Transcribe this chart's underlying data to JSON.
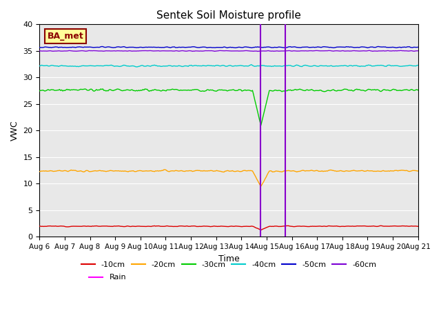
{
  "title": "Sentek Soil Moisture profile",
  "xlabel": "Time",
  "ylabel": "VWC",
  "site_label": "BA_met",
  "ylim": [
    0,
    40
  ],
  "yticks": [
    0,
    5,
    10,
    15,
    20,
    25,
    30,
    35,
    40
  ],
  "n_days": 15,
  "xtick_labels": [
    "Aug 6",
    "Aug 7",
    "Aug 8",
    "Aug 9",
    "Aug 10",
    "Aug 11",
    "Aug 12",
    "Aug 13",
    "Aug 14",
    "Aug 15",
    "Aug 16",
    "Aug 17",
    "Aug 18",
    "Aug 19",
    "Aug 20",
    "Aug 21"
  ],
  "series": {
    "-10cm": {
      "color": "#dd0000",
      "base": 2.0,
      "noise": 0.06,
      "spike_day": 8.75,
      "spike_val": 1.3
    },
    "-20cm": {
      "color": "#ffa500",
      "base": 12.4,
      "noise": 0.12,
      "spike_day": 8.75,
      "spike_val": 9.5
    },
    "-30cm": {
      "color": "#00cc00",
      "base": 27.6,
      "noise": 0.18,
      "spike_day": 8.75,
      "spike_val": 21.0
    },
    "-40cm": {
      "color": "#00cccc",
      "base": 32.2,
      "noise": 0.12,
      "spike_day": null,
      "spike_val": null
    },
    "-50cm": {
      "color": "#0000cc",
      "base": 35.7,
      "noise": 0.08,
      "spike_day": null,
      "spike_val": null
    },
    "-60cm": {
      "color": "#7b00d4",
      "base": 35.0,
      "noise": 0.05,
      "spike_day": null,
      "spike_val": null
    }
  },
  "rain_line1": 8.75,
  "rain_line2": 9.75,
  "rain_color": "#8800cc",
  "background_color": "#e8e8e8",
  "legend_order": [
    "-10cm",
    "-20cm",
    "-30cm",
    "-40cm",
    "-50cm",
    "-60cm",
    "Rain"
  ],
  "rain_legend_color": "#ff00ff"
}
